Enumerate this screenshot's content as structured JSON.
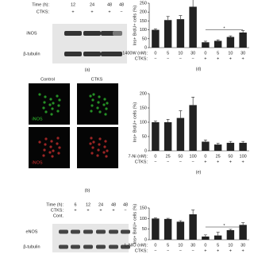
{
  "blot_a": {
    "time_label": "Time (h):",
    "times": [
      "12",
      "24",
      "48",
      "48"
    ],
    "ctks_label": "CTKS:",
    "ctks": [
      "+",
      "+",
      "+",
      "−"
    ],
    "rows": [
      "iNOS",
      "β-tubulin"
    ],
    "label": "(a)"
  },
  "images_b": {
    "columns": [
      "Control",
      "CTKS"
    ],
    "rows": [
      "iNOS",
      "iNOS"
    ],
    "label": "(b)"
  },
  "blot_c": {
    "time_label": "Time (h):",
    "times": [
      "6",
      "12",
      "24",
      "48",
      "48"
    ],
    "ctks_label": "CTKS:",
    "ctks": [
      "+",
      "+",
      "+",
      "+",
      "−"
    ],
    "cont_label": "Cont.",
    "rows": [
      "eNOS",
      "β-tubulin"
    ],
    "label": "(c)"
  },
  "chart_data": [
    {
      "type": "bar",
      "label": "(d)",
      "y_label": "Ins+ BrdU+ cells (%)",
      "x_label": "1400W (nM):",
      "categories": [
        "0",
        "5",
        "10",
        "30",
        "0",
        "5",
        "10",
        "30"
      ],
      "ctks_label": "CTKS:",
      "ctks": [
        "−",
        "−",
        "−",
        "−",
        "+",
        "+",
        "+",
        "+"
      ],
      "values": [
        100,
        155,
        160,
        230,
        30,
        38,
        60,
        85
      ],
      "errors": [
        5,
        20,
        20,
        40,
        6,
        6,
        6,
        10
      ],
      "significance": "*",
      "ylim": [
        0,
        250
      ],
      "yticks": [
        0,
        50,
        100,
        150,
        200,
        250
      ],
      "color": "#222222"
    },
    {
      "type": "bar",
      "label": "(e)",
      "y_label": "Ins+ BrdU+ cells (%)",
      "x_label": "7-Ni (nM):",
      "categories": [
        "0",
        "25",
        "50",
        "100",
        "0",
        "25",
        "50",
        "100"
      ],
      "ctks_label": "CTKS:",
      "ctks": [
        "−",
        "−",
        "−",
        "−",
        "+",
        "+",
        "+",
        "+"
      ],
      "values": [
        100,
        100,
        115,
        160,
        32,
        22,
        28,
        28
      ],
      "errors": [
        4,
        10,
        25,
        28,
        6,
        4,
        5,
        5
      ],
      "ylim": [
        0,
        200
      ],
      "yticks": [
        0,
        50,
        100,
        150,
        200
      ],
      "color": "#222222"
    },
    {
      "type": "bar",
      "label": "(f)",
      "y_label": "Ins+ BrdU+ cells (%)",
      "x_label": "L-NIO (nM):",
      "categories": [
        "0",
        "5",
        "10",
        "30",
        "0",
        "5",
        "10",
        "30"
      ],
      "ctks_label": "CTKS:",
      "ctks": [
        "−",
        "−",
        "−",
        "−",
        "+",
        "+",
        "+",
        "+"
      ],
      "values": [
        100,
        98,
        85,
        120,
        15,
        20,
        45,
        70
      ],
      "errors": [
        3,
        3,
        5,
        20,
        8,
        15,
        4,
        10
      ],
      "significance": "*",
      "ylim": [
        0,
        150
      ],
      "yticks": [
        0,
        50,
        100,
        150
      ],
      "color": "#222222"
    }
  ]
}
